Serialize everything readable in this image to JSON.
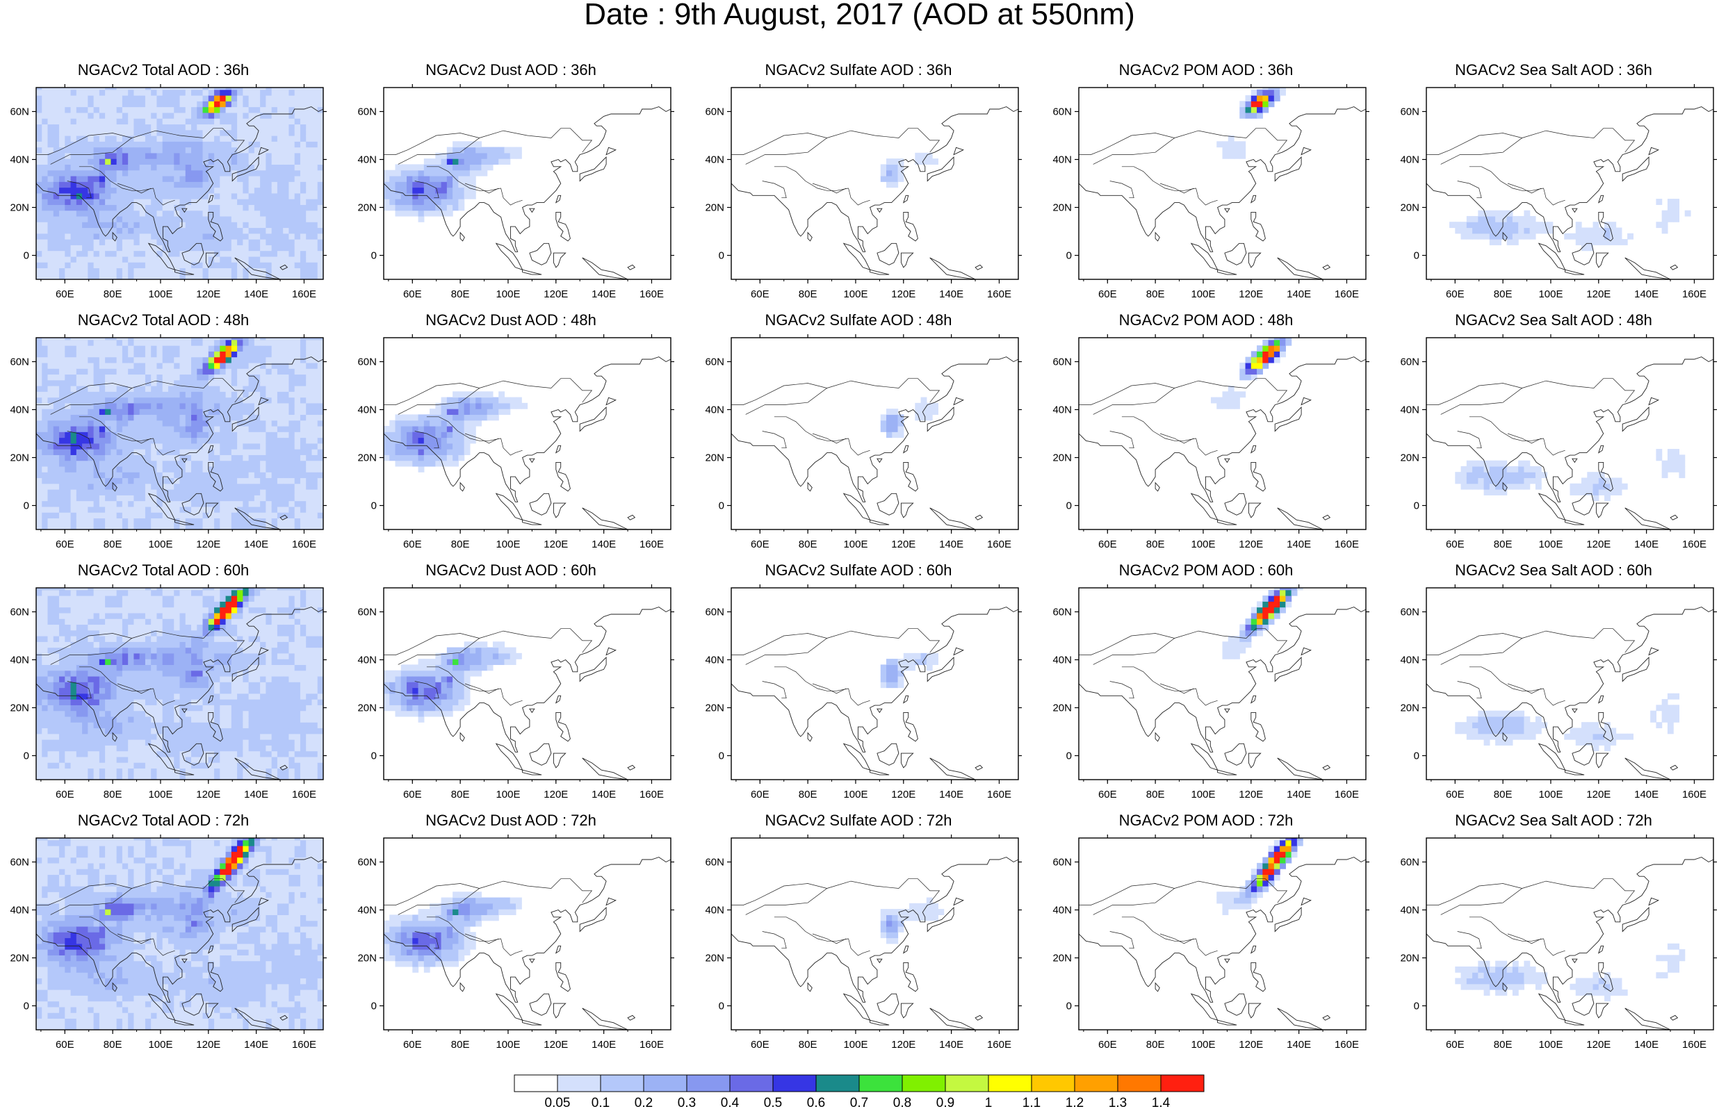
{
  "title": "Date : 9th August, 2017 (AOD at 550nm)",
  "chart_data": {
    "type": "heatmap",
    "title": "Date : 9th August, 2017 (AOD at 550nm)",
    "grid": false,
    "legend_position": "bottom",
    "x_tick_labels": [
      "60E",
      "80E",
      "100E",
      "120E",
      "140E",
      "160E"
    ],
    "x_tick_values": [
      60,
      80,
      100,
      120,
      140,
      160
    ],
    "y_tick_labels": [
      "60N",
      "40N",
      "20N",
      "0"
    ],
    "y_tick_values": [
      60,
      40,
      20,
      0
    ],
    "xlim": [
      48,
      168
    ],
    "ylim": [
      -10,
      70
    ],
    "colorbar": {
      "labels": [
        "0.05",
        "0.1",
        "0.2",
        "0.3",
        "0.4",
        "0.5",
        "0.6",
        "0.7",
        "0.8",
        "0.9",
        "1",
        "1.1",
        "1.2",
        "1.3",
        "1.4"
      ],
      "colors": [
        "#ffffff",
        "#d4e0fc",
        "#b4c8fa",
        "#9cb2f5",
        "#8798f0",
        "#6a6ae6",
        "#3636e4",
        "#1a8a8a",
        "#3ce23c",
        "#80f000",
        "#c4f840",
        "#ffff00",
        "#ffc800",
        "#ffa000",
        "#ff7800",
        "#ff2010"
      ]
    },
    "panels": [
      {
        "title": "NGACv2 Total AOD : 36h",
        "species": "total",
        "hour": 36
      },
      {
        "title": "NGACv2 Dust AOD : 36h",
        "species": "dust",
        "hour": 36
      },
      {
        "title": "NGACv2 Sulfate AOD : 36h",
        "species": "sulfate",
        "hour": 36
      },
      {
        "title": "NGACv2 POM AOD : 36h",
        "species": "pom",
        "hour": 36
      },
      {
        "title": "NGACv2 Sea Salt AOD : 36h",
        "species": "seasalt",
        "hour": 36
      },
      {
        "title": "NGACv2 Total AOD : 48h",
        "species": "total",
        "hour": 48
      },
      {
        "title": "NGACv2 Dust AOD : 48h",
        "species": "dust",
        "hour": 48
      },
      {
        "title": "NGACv2 Sulfate AOD : 48h",
        "species": "sulfate",
        "hour": 48
      },
      {
        "title": "NGACv2 POM AOD : 48h",
        "species": "pom",
        "hour": 48
      },
      {
        "title": "NGACv2 Sea Salt AOD : 48h",
        "species": "seasalt",
        "hour": 48
      },
      {
        "title": "NGACv2 Total AOD : 60h",
        "species": "total",
        "hour": 60
      },
      {
        "title": "NGACv2 Dust AOD : 60h",
        "species": "dust",
        "hour": 60
      },
      {
        "title": "NGACv2 Sulfate AOD : 60h",
        "species": "sulfate",
        "hour": 60
      },
      {
        "title": "NGACv2 POM AOD : 60h",
        "species": "pom",
        "hour": 60
      },
      {
        "title": "NGACv2 Sea Salt AOD : 60h",
        "species": "seasalt",
        "hour": 60
      },
      {
        "title": "NGACv2 Total AOD : 72h",
        "species": "total",
        "hour": 72
      },
      {
        "title": "NGACv2 Dust AOD : 72h",
        "species": "dust",
        "hour": 72
      },
      {
        "title": "NGACv2 Sulfate AOD : 72h",
        "species": "sulfate",
        "hour": 72
      },
      {
        "title": "NGACv2 POM AOD : 72h",
        "species": "pom",
        "hour": 72
      },
      {
        "title": "NGACv2 Sea Salt  AOD : 72h",
        "species": "seasalt",
        "hour": 72
      }
    ]
  }
}
